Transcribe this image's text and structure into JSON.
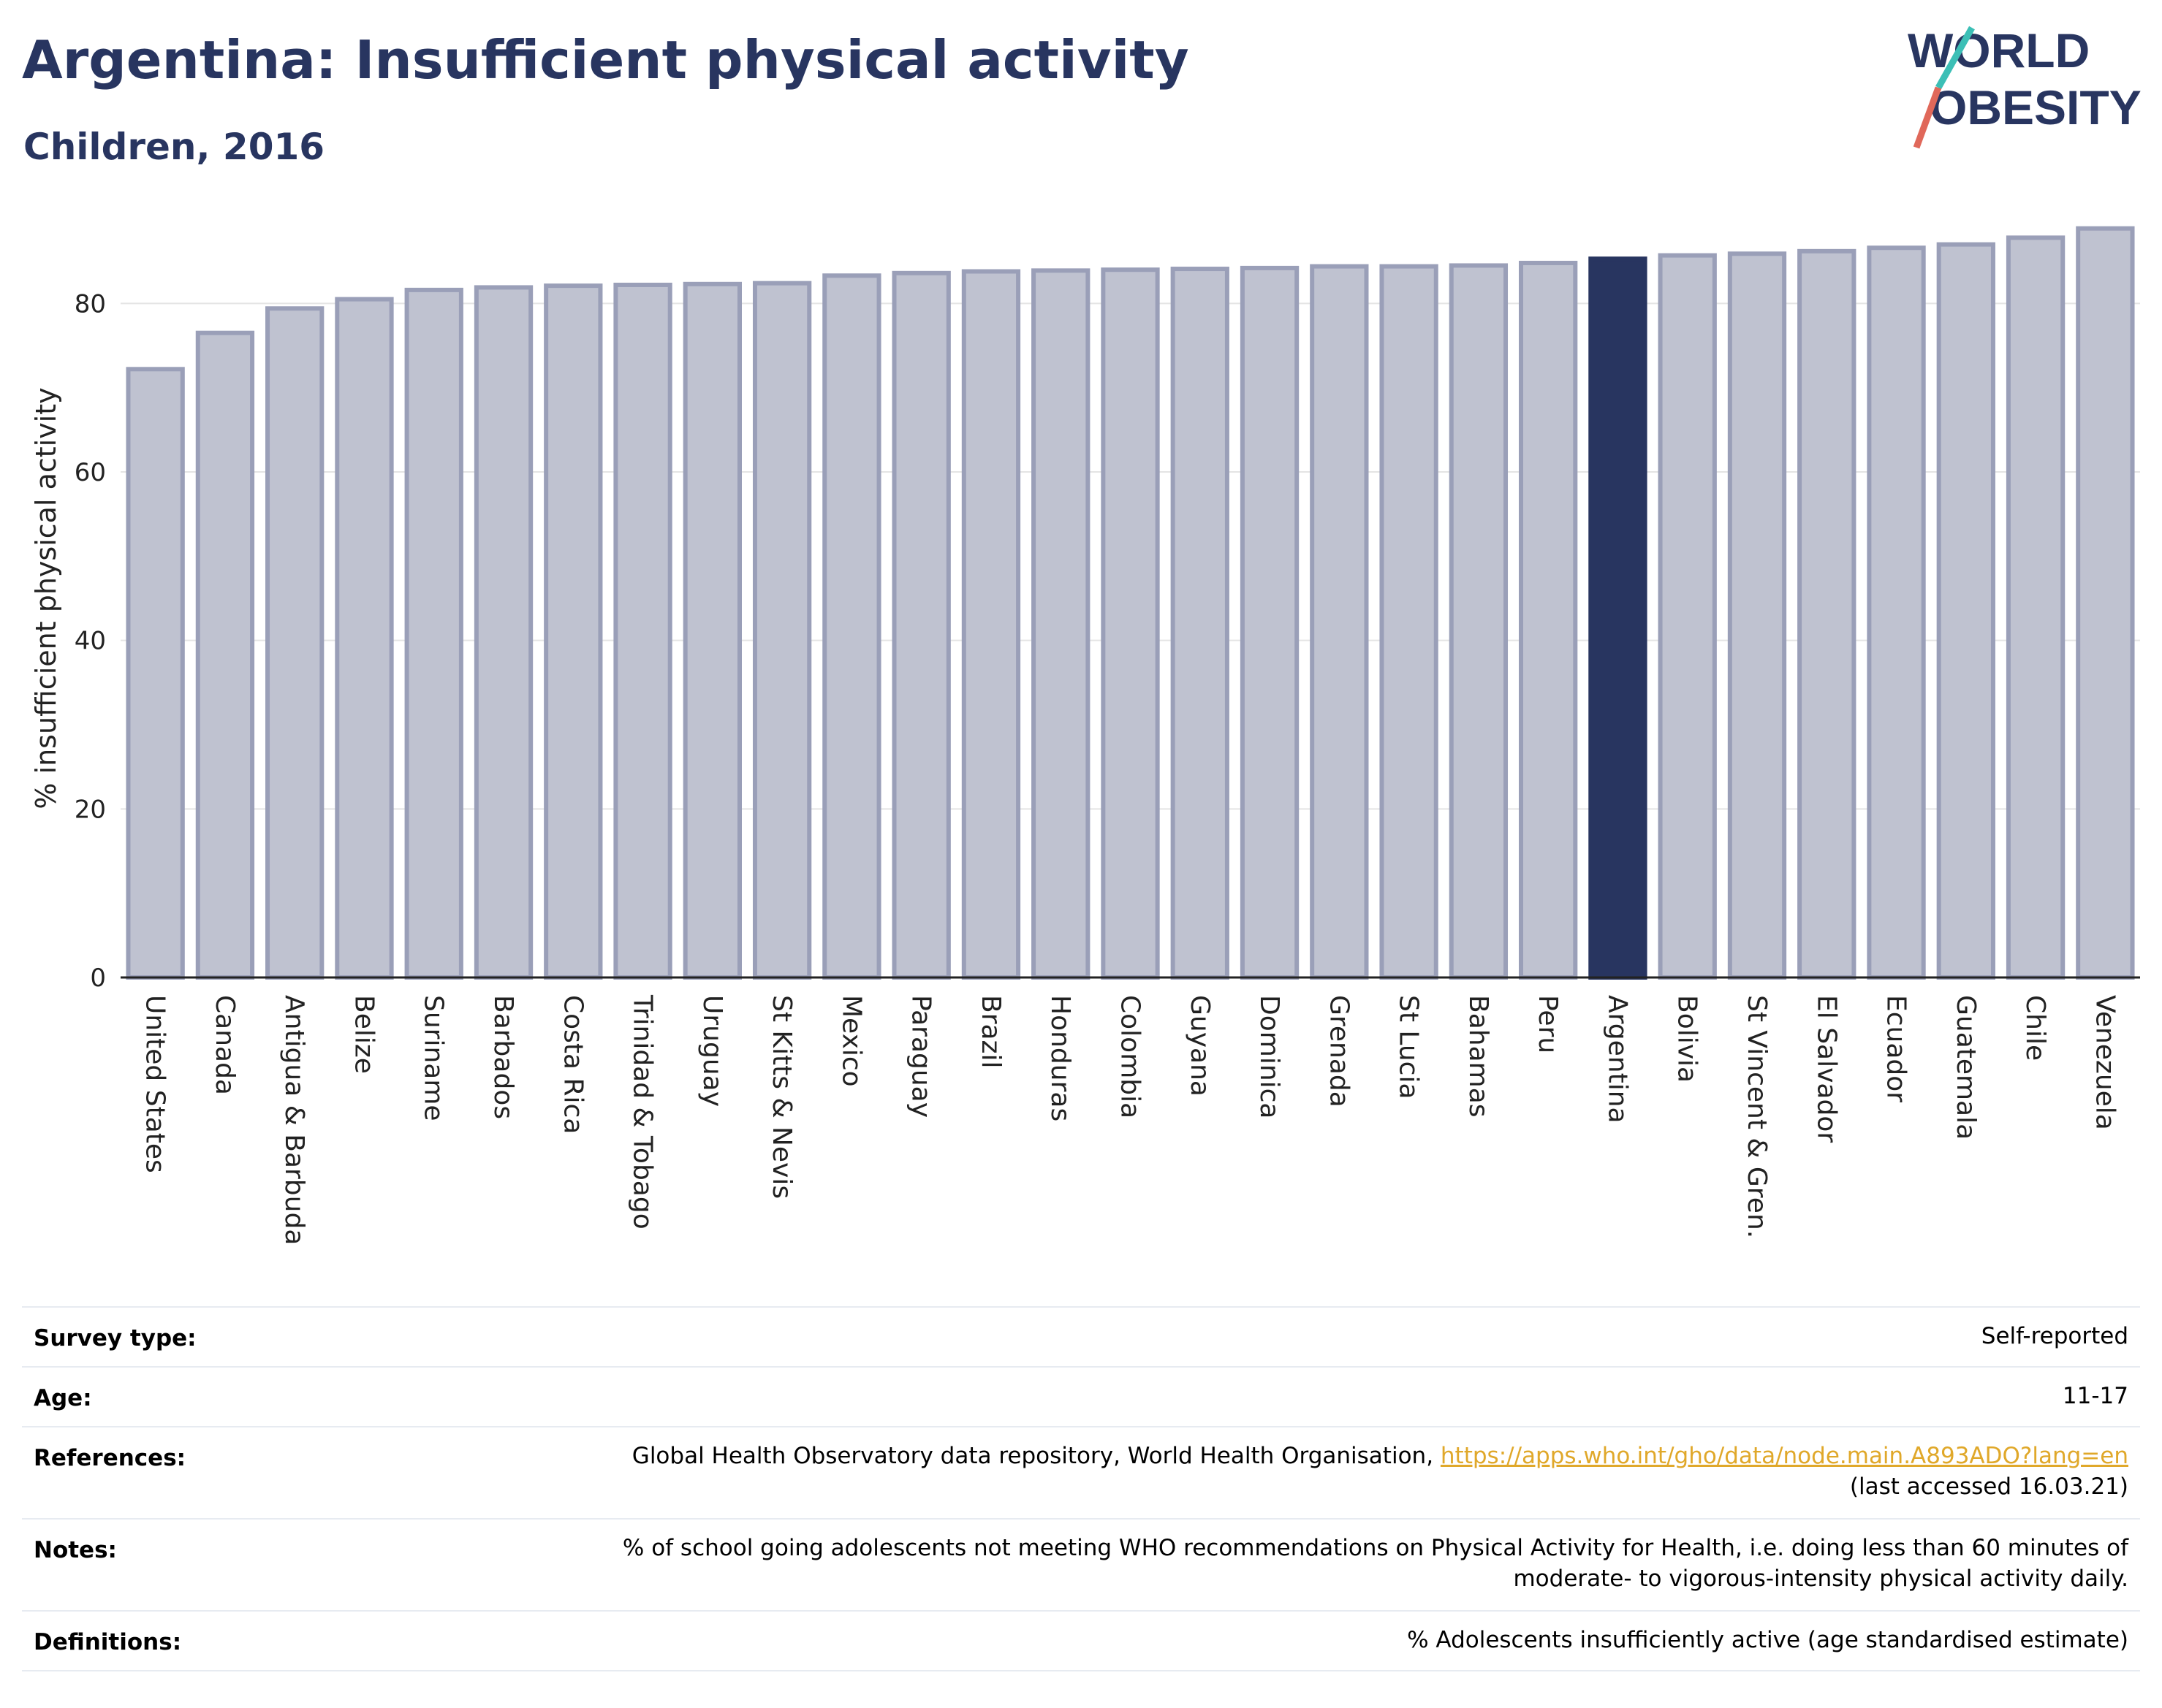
{
  "header": {
    "title": "Argentina: Insufficient physical activity",
    "subtitle": "Children, 2016"
  },
  "logo": {
    "line1": "WORLD",
    "line2": "OBESITY"
  },
  "chart_data": {
    "type": "bar",
    "ylabel": "% insufficient physical activity",
    "ylim": [
      0,
      90
    ],
    "yticks": [
      0,
      20,
      40,
      60,
      80
    ],
    "grid": true,
    "highlight": "Argentina",
    "colors": {
      "bar": "#bfc2d0",
      "bar_border": "#9a9fb8",
      "highlight": "#283560",
      "axis": "#222222",
      "grid": "#e4e4e4"
    },
    "categories": [
      "United States",
      "Canada",
      "Antigua & Barbuda",
      "Belize",
      "Suriname",
      "Barbados",
      "Costa Rica",
      "Trinidad & Tobago",
      "Uruguay",
      "St Kitts & Nevis",
      "Mexico",
      "Paraguay",
      "Brazil",
      "Honduras",
      "Colombia",
      "Guyana",
      "Dominica",
      "Grenada",
      "St Lucia",
      "Bahamas",
      "Peru",
      "Argentina",
      "Bolivia",
      "St Vincent & Gren.",
      "El Salvador",
      "Ecuador",
      "Guatemala",
      "Chile",
      "Venezuela"
    ],
    "values": [
      72.2,
      76.5,
      79.4,
      80.5,
      81.6,
      81.9,
      82.1,
      82.2,
      82.3,
      82.4,
      83.3,
      83.6,
      83.8,
      83.9,
      84.0,
      84.1,
      84.2,
      84.4,
      84.4,
      84.5,
      84.8,
      85.3,
      85.7,
      85.9,
      86.2,
      86.6,
      87.0,
      87.8,
      88.9
    ]
  },
  "details": [
    {
      "key": "Survey type:",
      "value": "Self-reported"
    },
    {
      "key": "Age:",
      "value": "11-17"
    },
    {
      "key": "References:",
      "value": "Global Health Observatory data repository, World Health Organisation,",
      "link": "https://apps.who.int/gho/data/node.main.A893ADO?lang=en",
      "extra": "(last accessed 16.03.21)"
    },
    {
      "key": "Notes:",
      "value": "% of school going adolescents not meeting WHO recommendations on Physical Activity for Health, i.e. doing less than 60 minutes of",
      "extra": "moderate- to vigorous-intensity physical activity daily."
    },
    {
      "key": "Definitions:",
      "value": "% Adolescents insufficiently active (age standardised estimate)"
    }
  ]
}
